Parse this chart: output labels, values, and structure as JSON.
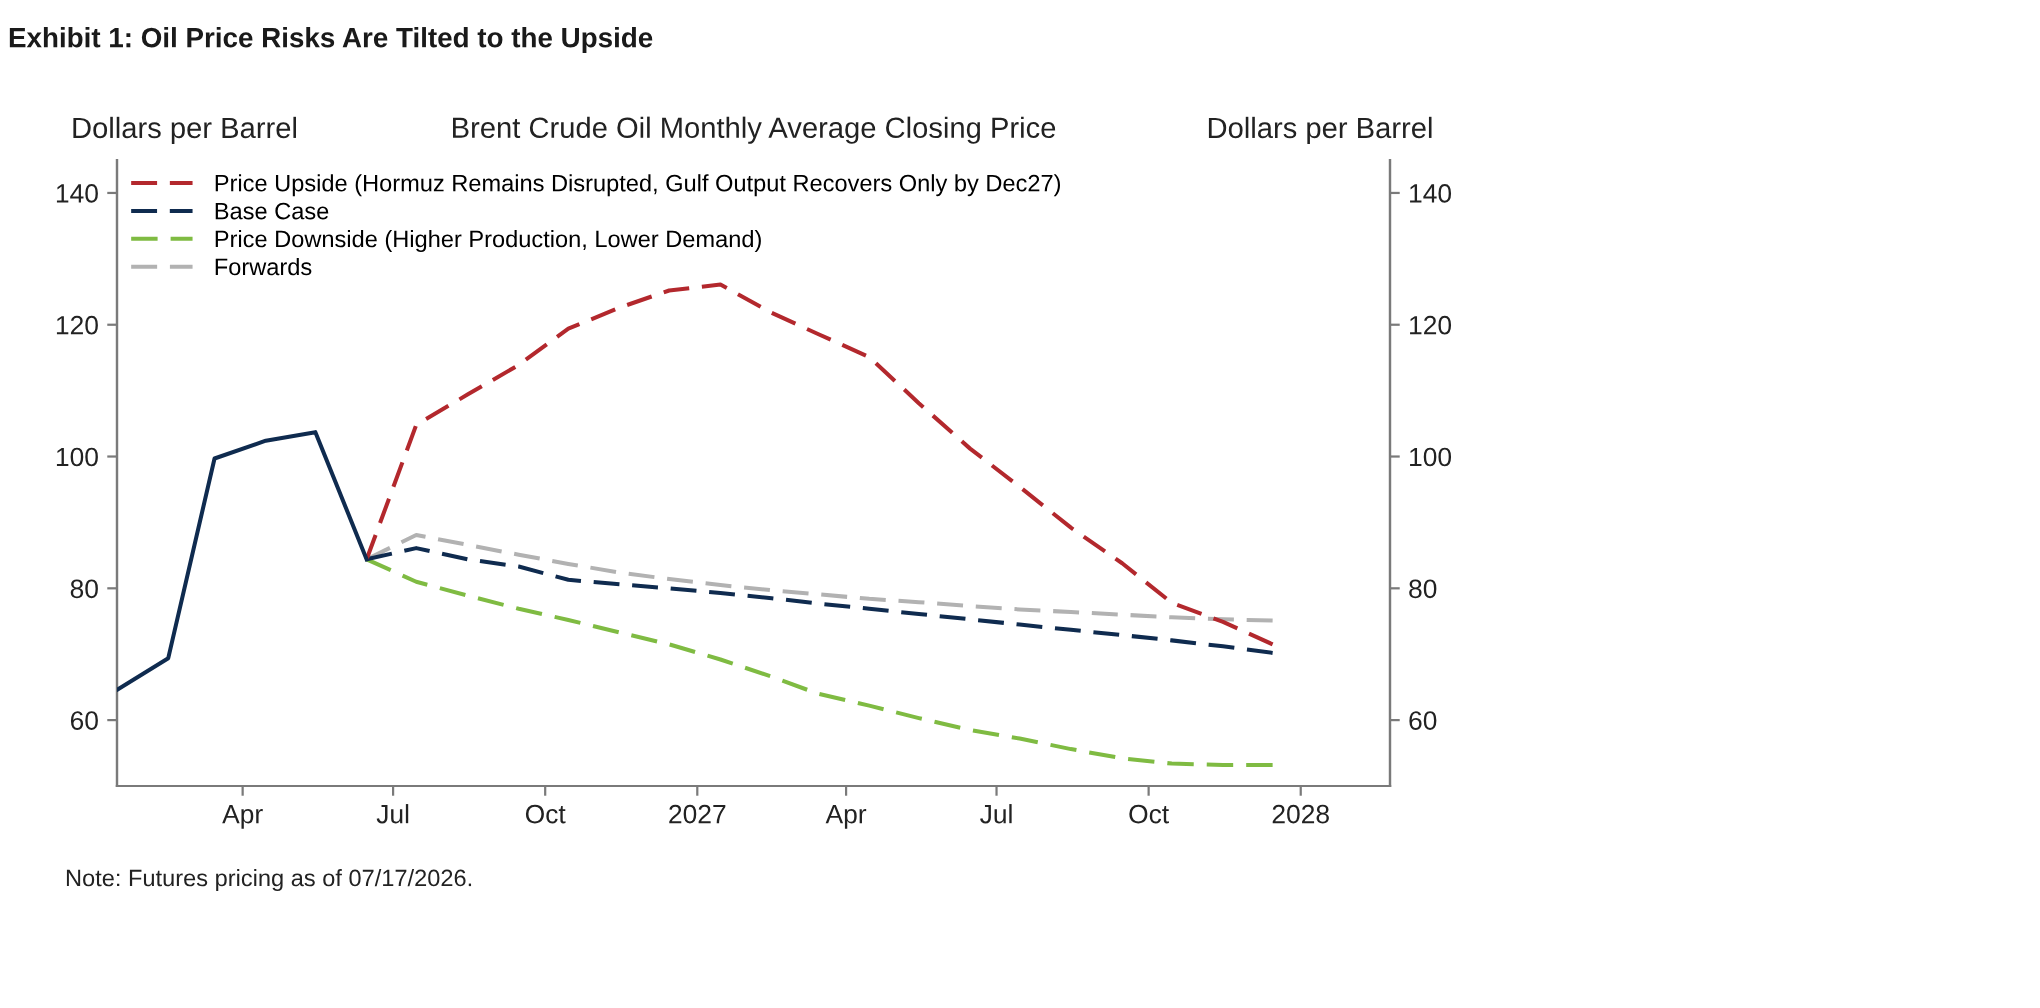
{
  "chart_data": {
    "type": "line",
    "title": "Exhibit 1: Oil Price Risks Are Tilted to the Upside",
    "subtitle": "Brent Crude Oil Monthly Average Closing Price",
    "ylabel": "Dollars per Barrel",
    "y2label": "Dollars per Barrel",
    "annotations": [
      "Note: Futures pricing as of 07/17/2026."
    ],
    "series": [
      {
        "color": "#0f2b4f",
        "line_style": "solid",
        "x": [
          "2026-01-15",
          "2026-02-15",
          "2026-03-15",
          "2026-04-15",
          "2026-05-15",
          "2026-06-15"
        ],
        "values": [
          64.6,
          69.4,
          99.7,
          102.4,
          103.7,
          84.4
        ]
      },
      {
        "name": "Price Upside (Hormuz Remains Disrupted, Gulf Output Recovers Only by Dec27)",
        "color": "#b3282d",
        "line_style": "dashed",
        "x": [
          "2026-06-15",
          "2026-07-15",
          "2026-08-15",
          "2026-09-15",
          "2026-10-15",
          "2026-11-15",
          "2026-12-15",
          "2027-01-15",
          "2027-02-15",
          "2027-03-15",
          "2027-04-15",
          "2027-05-15",
          "2027-06-15",
          "2027-07-15",
          "2027-08-15",
          "2027-09-15",
          "2027-10-15",
          "2027-11-15",
          "2027-12-15"
        ],
        "values": [
          84.4,
          104.8,
          109.4,
          113.9,
          119.4,
          122.6,
          125.2,
          126.1,
          121.8,
          118.6,
          115.1,
          108.1,
          101.2,
          95.4,
          89.2,
          83.8,
          77.8,
          74.9,
          71.5
        ]
      },
      {
        "name": "Base Case",
        "color": "#0f2b4f",
        "line_style": "dashed",
        "x": [
          "2026-06-15",
          "2026-07-15",
          "2026-08-15",
          "2026-09-15",
          "2026-10-15",
          "2026-11-15",
          "2026-12-15",
          "2027-01-15",
          "2027-02-15",
          "2027-03-15",
          "2027-04-15",
          "2027-05-15",
          "2027-06-15",
          "2027-07-15",
          "2027-08-15",
          "2027-09-15",
          "2027-10-15",
          "2027-11-15",
          "2027-12-15"
        ],
        "values": [
          84.4,
          86.1,
          84.4,
          83.3,
          81.3,
          80.6,
          80.0,
          79.3,
          78.5,
          77.7,
          76.9,
          76.1,
          75.3,
          74.5,
          73.7,
          72.9,
          72.1,
          71.2,
          70.2
        ]
      },
      {
        "name": "Price Downside (Higher Production, Lower Demand)",
        "color": "#7fbb42",
        "line_style": "dashed",
        "x": [
          "2026-06-15",
          "2026-07-15",
          "2026-08-15",
          "2026-09-15",
          "2026-10-15",
          "2026-11-15",
          "2026-12-15",
          "2027-01-15",
          "2027-02-15",
          "2027-03-15",
          "2027-04-15",
          "2027-05-15",
          "2027-06-15",
          "2027-07-15",
          "2027-08-15",
          "2027-09-15",
          "2027-10-15",
          "2027-11-15",
          "2027-12-15"
        ],
        "values": [
          84.4,
          81.0,
          78.9,
          76.9,
          75.2,
          73.3,
          71.5,
          69.2,
          66.6,
          64.0,
          62.2,
          60.3,
          58.5,
          57.2,
          55.6,
          54.2,
          53.4,
          53.2,
          53.2
        ]
      },
      {
        "name": "Forwards",
        "color": "#b2b2b2",
        "line_style": "dashed",
        "x": [
          "2026-06-15",
          "2026-07-15",
          "2026-08-15",
          "2026-09-15",
          "2026-10-15",
          "2026-11-15",
          "2026-12-15",
          "2027-01-15",
          "2027-02-15",
          "2027-03-15",
          "2027-04-15",
          "2027-05-15",
          "2027-06-15",
          "2027-07-15",
          "2027-08-15",
          "2027-09-15",
          "2027-10-15",
          "2027-11-15",
          "2027-12-15"
        ],
        "values": [
          84.4,
          88.1,
          86.6,
          85.1,
          83.7,
          82.4,
          81.4,
          80.5,
          79.7,
          79.1,
          78.4,
          77.9,
          77.3,
          76.8,
          76.4,
          76.0,
          75.6,
          75.3,
          75.1
        ]
      }
    ],
    "xlim": [
      "2026-01-15",
      "2028-02-24"
    ],
    "xticks": [
      {
        "value": "2026-04-01",
        "label": "Apr"
      },
      {
        "value": "2026-07-01",
        "label": "Jul"
      },
      {
        "value": "2026-10-01",
        "label": "Oct"
      },
      {
        "value": "2027-01-01",
        "label": "2027"
      },
      {
        "value": "2027-04-01",
        "label": "Apr"
      },
      {
        "value": "2027-07-01",
        "label": "Jul"
      },
      {
        "value": "2027-10-01",
        "label": "Oct"
      },
      {
        "value": "2028-01-01",
        "label": "2028"
      }
    ],
    "ylim": [
      50,
      145
    ],
    "yticks": [
      60,
      80,
      100,
      120,
      140
    ],
    "y2lim": [
      50,
      145
    ],
    "y2ticks": [
      60,
      80,
      100,
      120,
      140
    ],
    "legend": "top left"
  }
}
